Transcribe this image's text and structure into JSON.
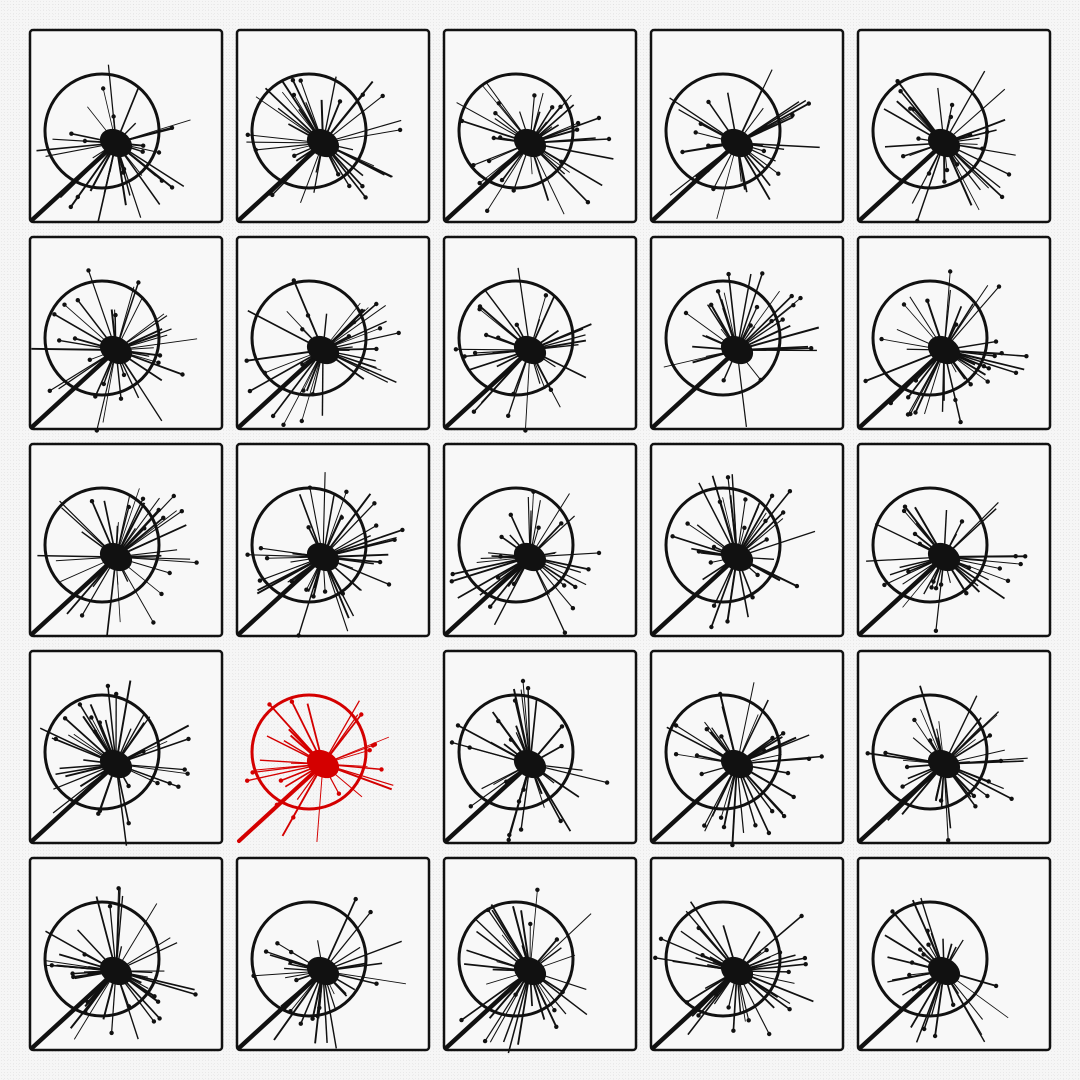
{
  "puzzle": {
    "rows": 5,
    "cols": 5,
    "odd_tile": {
      "row": 3,
      "col": 1
    },
    "colors": {
      "normal": "#111111",
      "odd": "#d40000",
      "tile_border": "#111111",
      "tile_fill": "#f8f8f8",
      "background": "#f6f6f6"
    },
    "icon": "dandelion-seedhead-icon"
  }
}
